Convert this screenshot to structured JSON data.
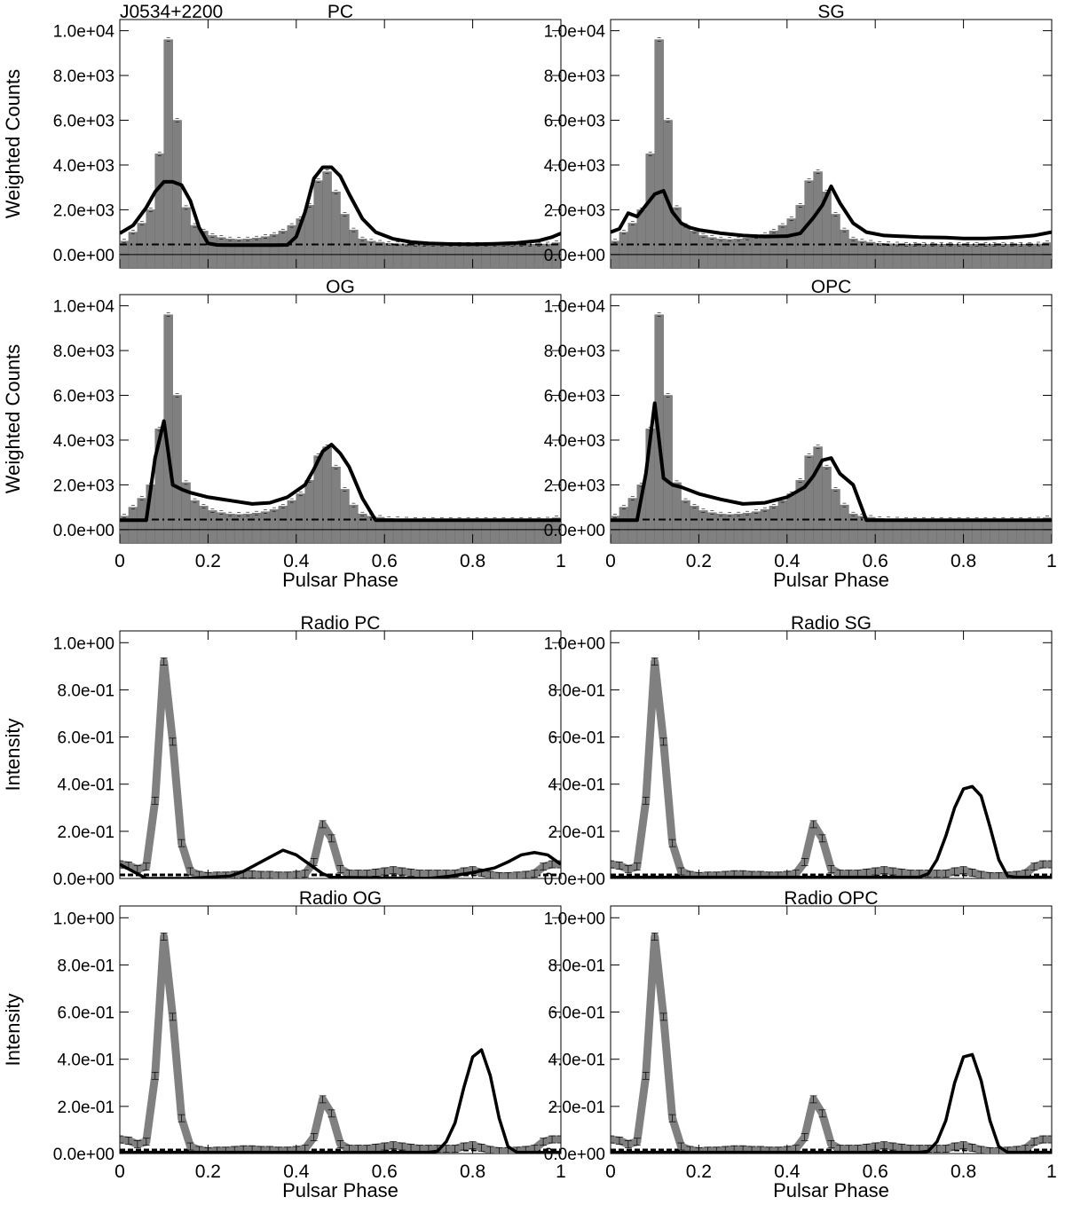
{
  "figure": {
    "source_label": "J0534+2200",
    "gamma_ylabel": "Weighted Counts",
    "radio_ylabel": "Intensity",
    "xlabel": "Pulsar Phase",
    "x_ticks": [
      "0",
      "0.2",
      "0.4",
      "0.6",
      "0.8",
      "1"
    ],
    "gamma_yticks": [
      {
        "v": 0,
        "label": "0.0e+00"
      },
      {
        "v": 2000,
        "label": "2.0e+03"
      },
      {
        "v": 4000,
        "label": "4.0e+03"
      },
      {
        "v": 6000,
        "label": "6.0e+03"
      },
      {
        "v": 8000,
        "label": "8.0e+03"
      },
      {
        "v": 10000,
        "label": "1.0e+04"
      }
    ],
    "radio_yticks": [
      {
        "v": 0,
        "label": "0.0e+00"
      },
      {
        "v": 0.2,
        "label": "2.0e-01"
      },
      {
        "v": 0.4,
        "label": "4.0e-01"
      },
      {
        "v": 0.6,
        "label": "6.0e-01"
      },
      {
        "v": 0.8,
        "label": "8.0e-01"
      },
      {
        "v": 1.0,
        "label": "1.0e+00"
      }
    ],
    "colors": {
      "histogram": "#808080",
      "model": "#000000",
      "radio": "#808080",
      "background": "#000000"
    }
  },
  "chart_data": {
    "type": "bar",
    "gamma_histogram": {
      "x_bin_width": 0.02,
      "ylim": [
        -600,
        10500
      ],
      "xlim": [
        0,
        1
      ],
      "values": [
        600,
        1000,
        1400,
        2000,
        4500,
        9600,
        6000,
        2100,
        1300,
        1050,
        850,
        760,
        700,
        680,
        700,
        740,
        800,
        900,
        1050,
        1300,
        1600,
        2200,
        3300,
        3700,
        2800,
        1800,
        1100,
        700,
        600,
        550,
        500,
        480,
        470,
        460,
        460,
        460,
        460,
        460,
        460,
        460,
        460,
        460,
        460,
        460,
        460,
        460,
        460,
        460,
        470,
        530
      ],
      "background_level": 450
    },
    "radio_profile": {
      "ylim": [
        0,
        1.05
      ],
      "xlim": [
        0,
        1
      ],
      "x": [
        0,
        0.02,
        0.04,
        0.06,
        0.08,
        0.1,
        0.12,
        0.14,
        0.16,
        0.18,
        0.2,
        0.22,
        0.24,
        0.26,
        0.28,
        0.3,
        0.32,
        0.34,
        0.36,
        0.38,
        0.4,
        0.42,
        0.44,
        0.46,
        0.48,
        0.5,
        0.52,
        0.54,
        0.56,
        0.58,
        0.6,
        0.62,
        0.64,
        0.66,
        0.68,
        0.7,
        0.72,
        0.74,
        0.76,
        0.78,
        0.8,
        0.82,
        0.84,
        0.86,
        0.88,
        0.9,
        0.92,
        0.94,
        0.96,
        0.98,
        1.0
      ],
      "values": [
        0.06,
        0.055,
        0.04,
        0.05,
        0.33,
        0.92,
        0.58,
        0.15,
        0.03,
        0.015,
        0.01,
        0.012,
        0.012,
        0.015,
        0.018,
        0.018,
        0.015,
        0.015,
        0.012,
        0.012,
        0.015,
        0.02,
        0.07,
        0.23,
        0.17,
        0.04,
        0.02,
        0.02,
        0.02,
        0.025,
        0.03,
        0.035,
        0.03,
        0.025,
        0.02,
        0.02,
        0.02,
        0.02,
        0.02,
        0.03,
        0.035,
        0.025,
        0.015,
        0.01,
        0.01,
        0.012,
        0.015,
        0.02,
        0.05,
        0.06,
        0.06
      ],
      "background_level": 0.015
    },
    "panels": [
      {
        "id": "gamma-pc",
        "title": "PC",
        "kind": "gamma",
        "model_x": [
          0,
          0.03,
          0.06,
          0.08,
          0.1,
          0.12,
          0.14,
          0.16,
          0.18,
          0.2,
          0.22,
          0.25,
          0.3,
          0.35,
          0.38,
          0.4,
          0.42,
          0.44,
          0.46,
          0.48,
          0.5,
          0.52,
          0.55,
          0.58,
          0.62,
          0.66,
          0.7,
          0.75,
          0.8,
          0.85,
          0.9,
          0.95,
          0.98,
          1.0
        ],
        "model_y": [
          950,
          1300,
          2100,
          2800,
          3250,
          3250,
          3100,
          2400,
          1200,
          500,
          430,
          420,
          420,
          420,
          430,
          800,
          1900,
          3400,
          3900,
          3900,
          3500,
          2700,
          1600,
          1000,
          700,
          560,
          500,
          470,
          460,
          480,
          520,
          620,
          780,
          950
        ]
      },
      {
        "id": "gamma-sg",
        "title": "SG",
        "kind": "gamma",
        "model_x": [
          0,
          0.02,
          0.04,
          0.06,
          0.08,
          0.1,
          0.12,
          0.14,
          0.16,
          0.18,
          0.2,
          0.25,
          0.3,
          0.35,
          0.4,
          0.43,
          0.46,
          0.48,
          0.5,
          0.52,
          0.55,
          0.58,
          0.62,
          0.7,
          0.76,
          0.8,
          0.85,
          0.9,
          0.93,
          0.96,
          1.0
        ],
        "model_y": [
          1000,
          1150,
          1850,
          1700,
          2200,
          2700,
          2850,
          1900,
          1400,
          1200,
          1100,
          950,
          850,
          800,
          820,
          950,
          1650,
          2200,
          3050,
          2300,
          1400,
          1000,
          850,
          780,
          760,
          720,
          720,
          760,
          800,
          850,
          1000
        ]
      },
      {
        "id": "gamma-og",
        "title": "OG",
        "kind": "gamma",
        "model_x": [
          0,
          0.02,
          0.04,
          0.06,
          0.08,
          0.1,
          0.12,
          0.14,
          0.16,
          0.2,
          0.25,
          0.3,
          0.34,
          0.38,
          0.42,
          0.44,
          0.46,
          0.48,
          0.5,
          0.52,
          0.55,
          0.58,
          0.62,
          0.7,
          0.8,
          0.9,
          1.0
        ],
        "model_y": [
          420,
          420,
          420,
          420,
          3200,
          4850,
          2000,
          1800,
          1650,
          1450,
          1300,
          1150,
          1200,
          1450,
          2000,
          2700,
          3500,
          3800,
          3400,
          2800,
          1400,
          420,
          420,
          420,
          420,
          420,
          420
        ]
      },
      {
        "id": "gamma-opc",
        "title": "OPC",
        "kind": "gamma",
        "model_x": [
          0,
          0.02,
          0.04,
          0.06,
          0.08,
          0.1,
          0.12,
          0.14,
          0.16,
          0.2,
          0.25,
          0.3,
          0.35,
          0.4,
          0.44,
          0.46,
          0.48,
          0.5,
          0.52,
          0.55,
          0.58,
          0.62,
          0.7,
          0.8,
          0.9,
          1.0
        ],
        "model_y": [
          420,
          420,
          420,
          420,
          2500,
          5650,
          2300,
          2000,
          1900,
          1600,
          1350,
          1150,
          1200,
          1450,
          1900,
          2400,
          3100,
          3200,
          2500,
          2000,
          420,
          420,
          420,
          420,
          420,
          420
        ]
      },
      {
        "id": "radio-pc",
        "title": "Radio PC",
        "kind": "radio",
        "model_x": [
          0,
          0.02,
          0.04,
          0.06,
          0.15,
          0.25,
          0.28,
          0.31,
          0.34,
          0.37,
          0.4,
          0.43,
          0.46,
          0.48,
          0.7,
          0.75,
          0.8,
          0.85,
          0.88,
          0.91,
          0.94,
          0.97,
          1.0
        ],
        "model_y": [
          0.06,
          0.04,
          0.02,
          0,
          0,
          0.01,
          0.03,
          0.06,
          0.09,
          0.12,
          0.1,
          0.06,
          0.02,
          0.005,
          0,
          0.01,
          0.025,
          0.045,
          0.07,
          0.1,
          0.11,
          0.1,
          0.06
        ]
      },
      {
        "id": "radio-sg",
        "title": "Radio SG",
        "kind": "radio",
        "model_x": [
          0,
          0.1,
          0.2,
          0.3,
          0.4,
          0.5,
          0.6,
          0.7,
          0.72,
          0.74,
          0.76,
          0.78,
          0.8,
          0.82,
          0.84,
          0.86,
          0.88,
          0.9,
          0.92,
          1.0
        ],
        "model_y": [
          0.005,
          0.005,
          0.005,
          0.005,
          0.005,
          0.005,
          0.005,
          0.005,
          0.02,
          0.08,
          0.18,
          0.3,
          0.38,
          0.39,
          0.35,
          0.22,
          0.08,
          0.01,
          0.005,
          0.005
        ]
      },
      {
        "id": "radio-og",
        "title": "Radio OG",
        "kind": "radio",
        "model_x": [
          0,
          0.1,
          0.2,
          0.3,
          0.4,
          0.5,
          0.6,
          0.7,
          0.72,
          0.74,
          0.76,
          0.78,
          0.8,
          0.82,
          0.84,
          0.86,
          0.88,
          0.9,
          0.92,
          1.0
        ],
        "model_y": [
          0.005,
          0.005,
          0.005,
          0.005,
          0.005,
          0.005,
          0.005,
          0.005,
          0.01,
          0.05,
          0.13,
          0.28,
          0.41,
          0.44,
          0.33,
          0.15,
          0.03,
          0.005,
          0.005,
          0.005
        ]
      },
      {
        "id": "radio-opc",
        "title": "Radio OPC",
        "kind": "radio",
        "model_x": [
          0,
          0.1,
          0.2,
          0.3,
          0.4,
          0.5,
          0.6,
          0.7,
          0.72,
          0.74,
          0.76,
          0.78,
          0.8,
          0.82,
          0.84,
          0.86,
          0.88,
          0.9,
          0.92,
          1.0
        ],
        "model_y": [
          0.005,
          0.005,
          0.005,
          0.005,
          0.005,
          0.005,
          0.005,
          0.005,
          0.01,
          0.05,
          0.14,
          0.3,
          0.41,
          0.42,
          0.31,
          0.14,
          0.03,
          0.005,
          0.005,
          0.005
        ]
      }
    ]
  }
}
